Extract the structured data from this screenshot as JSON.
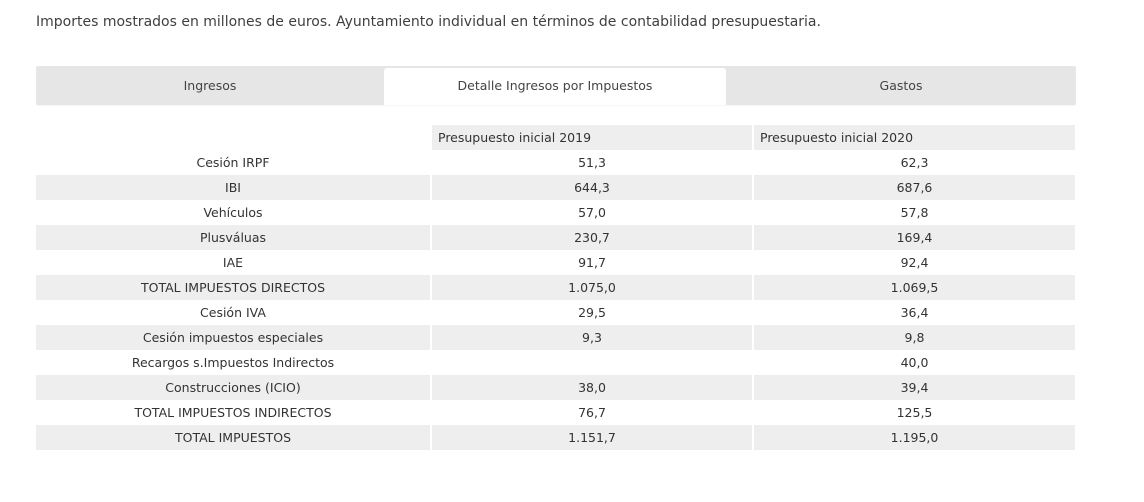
{
  "caption": "Importes mostrados en millones de euros. Ayuntamiento individual en términos de contabilidad presupuestaria.",
  "tabs": [
    {
      "label": "Ingresos",
      "active": false
    },
    {
      "label": "Detalle Ingresos por Impuestos",
      "active": true
    },
    {
      "label": "Gastos",
      "active": false
    }
  ],
  "table": {
    "headers": [
      "",
      "Presupuesto inicial 2019",
      "Presupuesto inicial 2020"
    ],
    "rows": [
      {
        "label": "Cesión IRPF",
        "v2019": "51,3",
        "v2020": "62,3"
      },
      {
        "label": "IBI",
        "v2019": "644,3",
        "v2020": "687,6"
      },
      {
        "label": "Vehículos",
        "v2019": "57,0",
        "v2020": "57,8"
      },
      {
        "label": "Plusváluas",
        "v2019": "230,7",
        "v2020": "169,4"
      },
      {
        "label": "IAE",
        "v2019": "91,7",
        "v2020": "92,4"
      },
      {
        "label": "TOTAL IMPUESTOS DIRECTOS",
        "v2019": "1.075,0",
        "v2020": "1.069,5"
      },
      {
        "label": "Cesión IVA",
        "v2019": "29,5",
        "v2020": "36,4"
      },
      {
        "label": "Cesión impuestos especiales",
        "v2019": "9,3",
        "v2020": "9,8"
      },
      {
        "label": "Recargos s.Impuestos Indirectos",
        "v2019": "",
        "v2020": "40,0"
      },
      {
        "label": "Construcciones (ICIO)",
        "v2019": "38,0",
        "v2020": "39,4"
      },
      {
        "label": "TOTAL IMPUESTOS INDIRECTOS",
        "v2019": "76,7",
        "v2020": "125,5"
      },
      {
        "label": "TOTAL IMPUESTOS",
        "v2019": "1.151,7",
        "v2020": "1.195,0"
      }
    ]
  }
}
